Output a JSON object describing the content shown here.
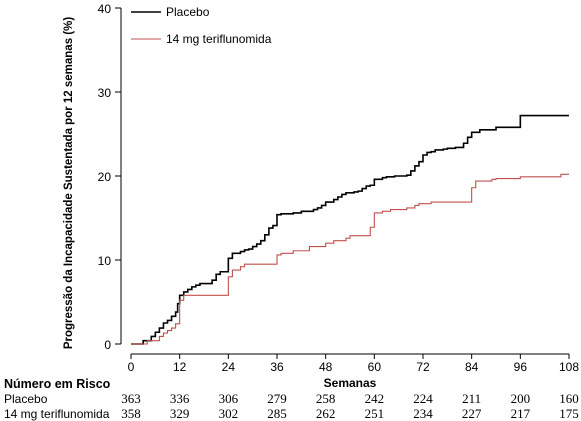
{
  "chart_data": {
    "type": "line",
    "title": "",
    "xlabel": "Semanas",
    "ylabel": "Progressão da Incapacidade Sustentada por 12 semanas (%)",
    "xlim": [
      0,
      108
    ],
    "ylim": [
      0,
      40
    ],
    "xticks": [
      0,
      12,
      24,
      36,
      48,
      60,
      72,
      84,
      96,
      108
    ],
    "yticks": [
      0,
      10,
      20,
      30,
      40
    ],
    "step": true,
    "legend_position": "top-left",
    "series": [
      {
        "name": "Placebo",
        "color": "#000000",
        "x": [
          0,
          3,
          5,
          6,
          7,
          8,
          9,
          10,
          11,
          11.5,
          12,
          13,
          14,
          15,
          16,
          17,
          18,
          20,
          21,
          22,
          23,
          24,
          25,
          27,
          28,
          29,
          30,
          31,
          32,
          33,
          34,
          35,
          36,
          37,
          38,
          40,
          42,
          45,
          46,
          47,
          48,
          50,
          51,
          52,
          53,
          55,
          56,
          57,
          58,
          59,
          60,
          62,
          63,
          65,
          68,
          69,
          70,
          71,
          72,
          73,
          74,
          75,
          77,
          78,
          80,
          82,
          83,
          84,
          86,
          90,
          96,
          108
        ],
        "y": [
          0,
          0.4,
          0.9,
          1.4,
          1.9,
          2.5,
          2.8,
          3.3,
          3.8,
          4.8,
          5.8,
          6.2,
          6.5,
          6.8,
          7.0,
          7.2,
          7.2,
          7.6,
          8.3,
          8.6,
          8.6,
          10.2,
          10.8,
          11.0,
          11.2,
          11.3,
          11.6,
          11.9,
          12.3,
          13.0,
          13.8,
          14.1,
          15.4,
          15.5,
          15.5,
          15.6,
          15.8,
          16.0,
          16.2,
          16.5,
          16.9,
          17.2,
          17.5,
          17.8,
          18.0,
          18.1,
          18.2,
          18.5,
          18.8,
          18.9,
          19.6,
          19.8,
          19.9,
          20.0,
          20.1,
          20.6,
          21.2,
          21.7,
          22.5,
          22.8,
          22.9,
          23.1,
          23.2,
          23.3,
          23.4,
          23.9,
          24.6,
          25.2,
          25.5,
          25.8,
          27.2,
          27.2
        ]
      },
      {
        "name": "14 mg teriflunomida",
        "color": "#c0504d",
        "x": [
          0,
          4,
          7,
          8,
          9,
          10,
          11,
          12,
          13,
          24,
          25,
          27,
          28,
          36,
          37,
          40,
          44,
          48,
          50,
          53,
          54,
          59,
          60,
          62,
          64,
          68,
          70,
          71,
          74,
          84,
          85,
          89,
          90,
          96,
          106,
          108
        ],
        "y": [
          0,
          0.4,
          0.9,
          1.3,
          1.6,
          1.9,
          2.4,
          5.2,
          5.8,
          8.0,
          8.8,
          9.2,
          9.5,
          10.6,
          10.8,
          11.1,
          11.6,
          12.0,
          12.3,
          12.6,
          12.9,
          13.9,
          15.6,
          15.8,
          16.0,
          16.2,
          16.5,
          16.7,
          16.9,
          18.6,
          19.4,
          19.6,
          19.7,
          19.9,
          20.2,
          20.2
        ]
      }
    ],
    "risk_table": {
      "title": "Número em Risco",
      "weeks": [
        0,
        12,
        24,
        36,
        48,
        60,
        72,
        84,
        96,
        108
      ],
      "rows": [
        {
          "label": "Placebo",
          "values": [
            "363",
            "336",
            "306",
            "279",
            "258",
            "242",
            "224",
            "211",
            "200",
            "160"
          ]
        },
        {
          "label": "14 mg teriflunomida",
          "values": [
            "358",
            "329",
            "302",
            "285",
            "262",
            "251",
            "234",
            "227",
            "217",
            "175"
          ]
        }
      ]
    }
  }
}
